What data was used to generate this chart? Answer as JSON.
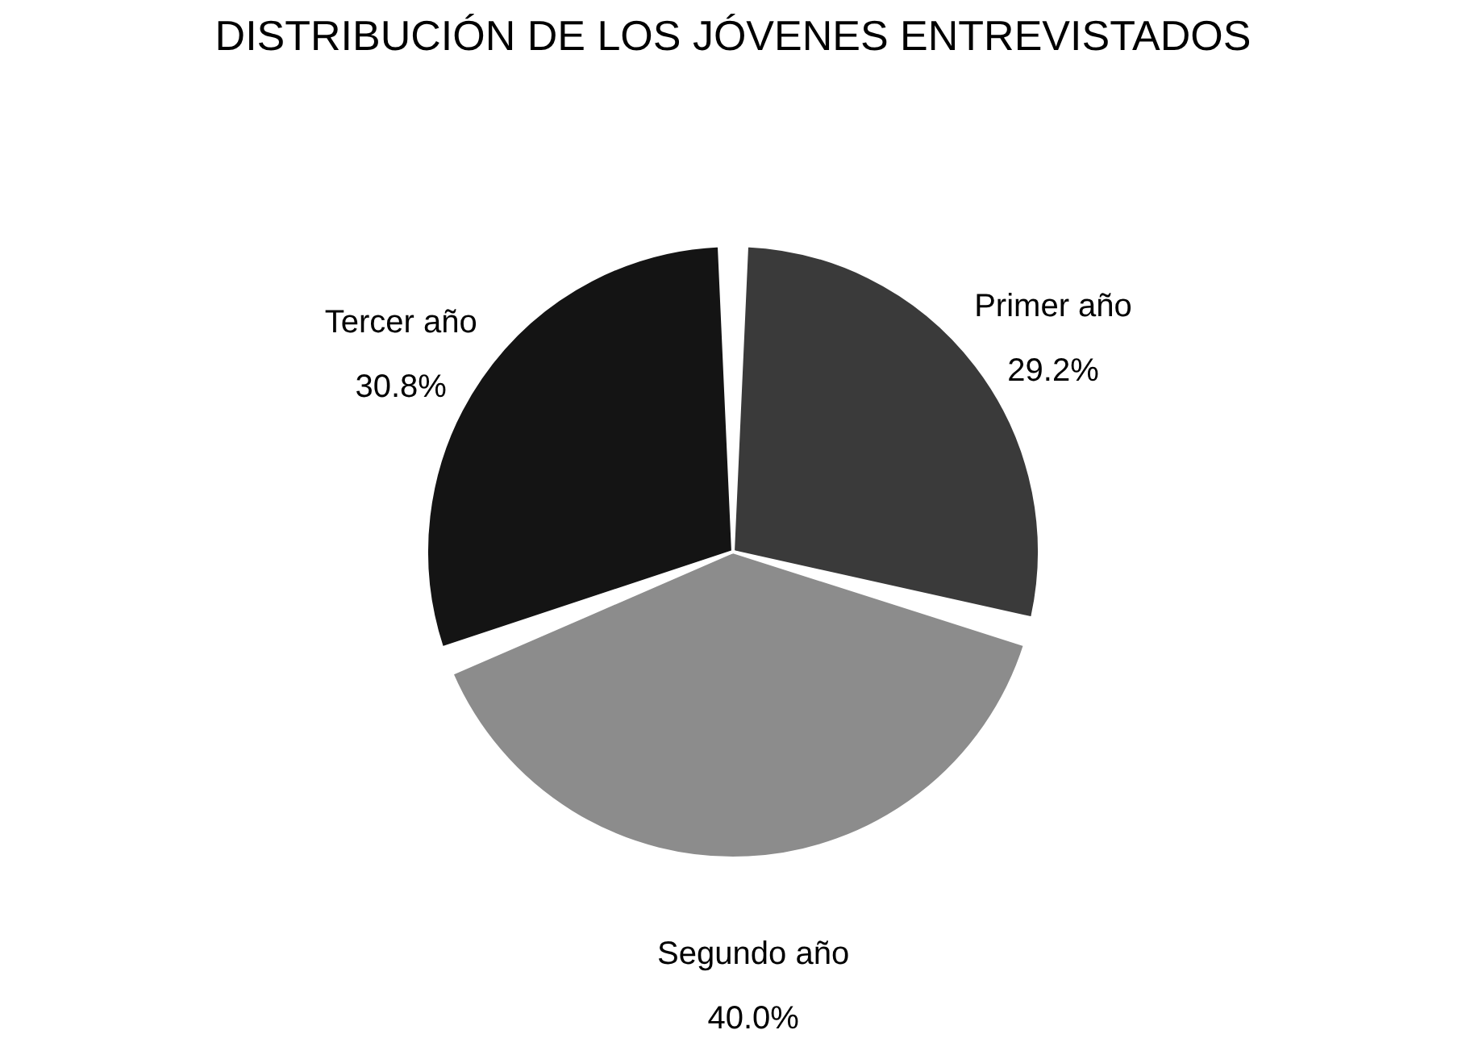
{
  "chart_data": {
    "type": "pie",
    "title": "DISTRIBUCIÓN DE LOS JÓVENES ENTREVISTADOS",
    "categories": [
      "Primer año",
      "Segundo año",
      "Tercer año"
    ],
    "values": [
      29.2,
      40.0,
      30.8
    ],
    "colors": [
      "#3a3a3a",
      "#8c8c8c",
      "#141414"
    ],
    "value_labels": [
      "29.2%",
      "40.0%",
      "30.8%"
    ],
    "legend": false
  }
}
